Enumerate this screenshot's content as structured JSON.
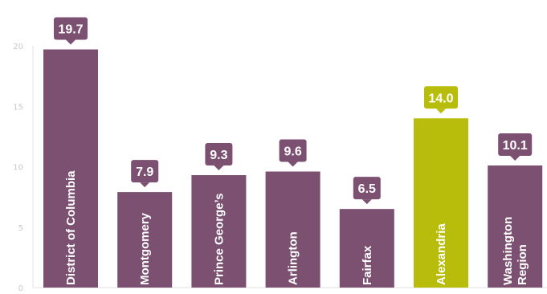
{
  "chart_data": {
    "type": "bar",
    "categories": [
      "District of Columbia",
      "Montgomery",
      "Prince George’s",
      "Arlington",
      "Fairfax",
      "Alexandria",
      "Washington Region"
    ],
    "category_lines": [
      [
        "District of Columbia"
      ],
      [
        "Montgomery"
      ],
      [
        "Prince George’s"
      ],
      [
        "Arlington"
      ],
      [
        "Fairfax"
      ],
      [
        "Alexandria"
      ],
      [
        "Washington",
        "Region"
      ]
    ],
    "values": [
      19.7,
      7.9,
      9.3,
      9.6,
      6.5,
      14.0,
      10.1
    ],
    "value_labels": [
      "19.7",
      "7.9",
      "9.3",
      "9.6",
      "6.5",
      "14.0",
      "10.1"
    ],
    "ylim": [
      0,
      20
    ],
    "yticks": [
      0,
      5,
      10,
      15,
      20
    ],
    "ytick_labels": [
      "0",
      "5",
      "10",
      "15",
      "20"
    ],
    "highlight_index": 5,
    "colors": {
      "default": "#7b5070",
      "highlight": "#b8bd0c"
    },
    "grid": false,
    "legend": "none"
  }
}
